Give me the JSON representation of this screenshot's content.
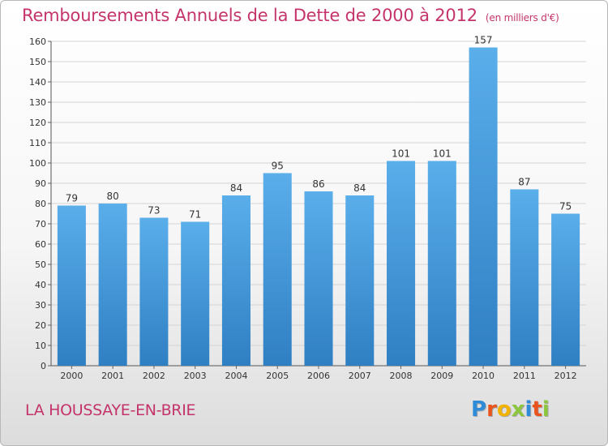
{
  "header": {
    "title": "Remboursements Annuels de la Dette de 2000 à 2012",
    "subtitle": "(en milliers d'€)"
  },
  "footer": {
    "town": "LA HOUSSAYE-EN-BRIE",
    "logo": {
      "letters": [
        "P",
        "r",
        "o",
        "x",
        "i",
        "t",
        "i"
      ],
      "colors": [
        "#2f8ad8",
        "#e8541c",
        "#f2b300",
        "#8cc63f",
        "#2f8ad8",
        "#e8541c",
        "#8cc63f"
      ]
    }
  },
  "chart_data": {
    "type": "bar",
    "categories": [
      "2000",
      "2001",
      "2002",
      "2003",
      "2004",
      "2005",
      "2006",
      "2007",
      "2008",
      "2009",
      "2010",
      "2011",
      "2012"
    ],
    "values": [
      79,
      80,
      73,
      71,
      84,
      95,
      86,
      84,
      101,
      101,
      157,
      87,
      75
    ],
    "ylim": [
      0,
      160
    ],
    "yticks": [
      0,
      10,
      20,
      30,
      40,
      50,
      60,
      70,
      80,
      90,
      100,
      110,
      120,
      130,
      140,
      150,
      160
    ],
    "grid": true,
    "bar_color_top": "#5aaeea",
    "bar_color_bottom": "#2f7fc3"
  }
}
